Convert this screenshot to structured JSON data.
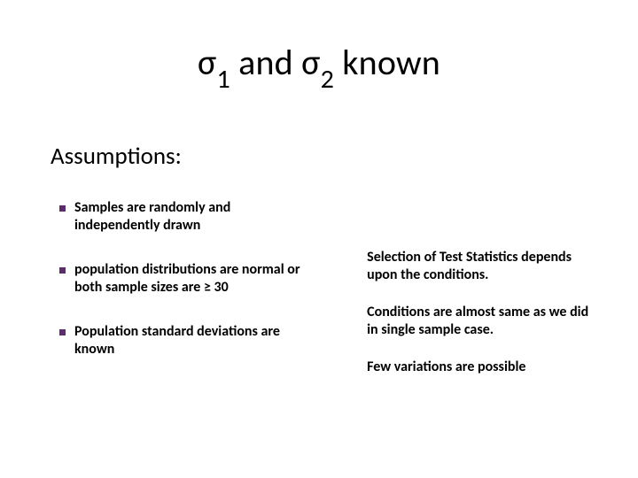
{
  "title": {
    "prefix": "σ",
    "sub1": "1",
    "mid": " and σ",
    "sub2": "2",
    "suffix": " known"
  },
  "subheading": "Assumptions:",
  "bullets": [
    "Samples are randomly and independently drawn",
    "population distributions are normal or both sample sizes are ≥ 30",
    "Population standard deviations are known"
  ],
  "notes": [
    "Selection of Test Statistics depends upon the conditions.",
    "Conditions are almost same as we did in single sample case.",
    "Few variations are possible"
  ],
  "styling": {
    "background_color": "#ffffff",
    "text_color": "#000000",
    "bullet_color": "#5e2b6d",
    "title_fontsize": 40,
    "subheading_fontsize": 27,
    "body_fontsize": 16,
    "body_fontweight": 700,
    "slide_width": 720,
    "slide_height": 540
  }
}
